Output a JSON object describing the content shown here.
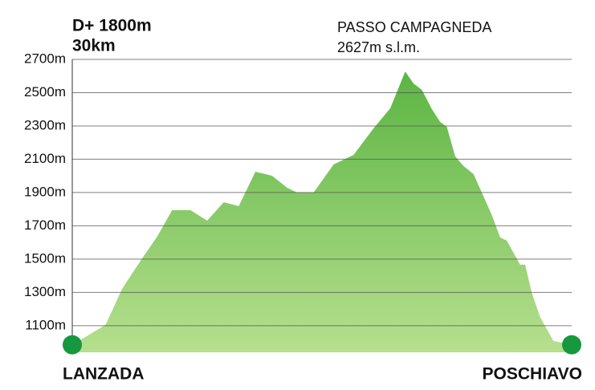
{
  "chart_data": {
    "type": "area",
    "stats": [
      "D+ 1800m",
      "30km"
    ],
    "peak_label": [
      "PASSO CAMPAGNEDA",
      "2627m s.l.m."
    ],
    "start_label": "LANZADA",
    "end_label": "POSCHIAVO",
    "x": [
      0,
      2.0,
      3.0,
      4.1,
      5.1,
      6.0,
      7.1,
      8.1,
      9.1,
      10.0,
      11.0,
      12.0,
      12.9,
      13.5,
      14.5,
      15.7,
      16.9,
      18.1,
      19.1,
      20.0,
      20.5,
      21.0,
      21.6,
      22.1,
      22.5,
      23.0,
      23.5,
      24.1,
      24.6,
      25.2,
      25.7,
      26.1,
      26.9,
      27.2,
      27.6,
      28.1,
      28.9,
      30
    ],
    "values": [
      985,
      1105,
      1322,
      1490,
      1635,
      1794,
      1794,
      1731,
      1842,
      1818,
      2025,
      2001,
      1929,
      1900,
      1900,
      2069,
      2126,
      2286,
      2406,
      2627,
      2555,
      2517,
      2401,
      2324,
      2295,
      2117,
      2059,
      2011,
      1900,
      1765,
      1630,
      1611,
      1466,
      1466,
      1298,
      1153,
      1008,
      985
    ],
    "color": "#5cb543",
    "marker_color": "#15983e",
    "xlim": [
      0,
      30
    ],
    "ylim": [
      940,
      2700
    ],
    "yticks": [
      {
        "value": 1100,
        "label": "1100m"
      },
      {
        "value": 1300,
        "label": "1300m"
      },
      {
        "value": 1500,
        "label": "1500m"
      },
      {
        "value": 1700,
        "label": "1700m"
      },
      {
        "value": 1900,
        "label": "1900m"
      },
      {
        "value": 2100,
        "label": "2100m"
      },
      {
        "value": 2300,
        "label": "2300m"
      },
      {
        "value": 2500,
        "label": "2500m"
      },
      {
        "value": 2700,
        "label": "2700m"
      }
    ],
    "grid": true
  }
}
